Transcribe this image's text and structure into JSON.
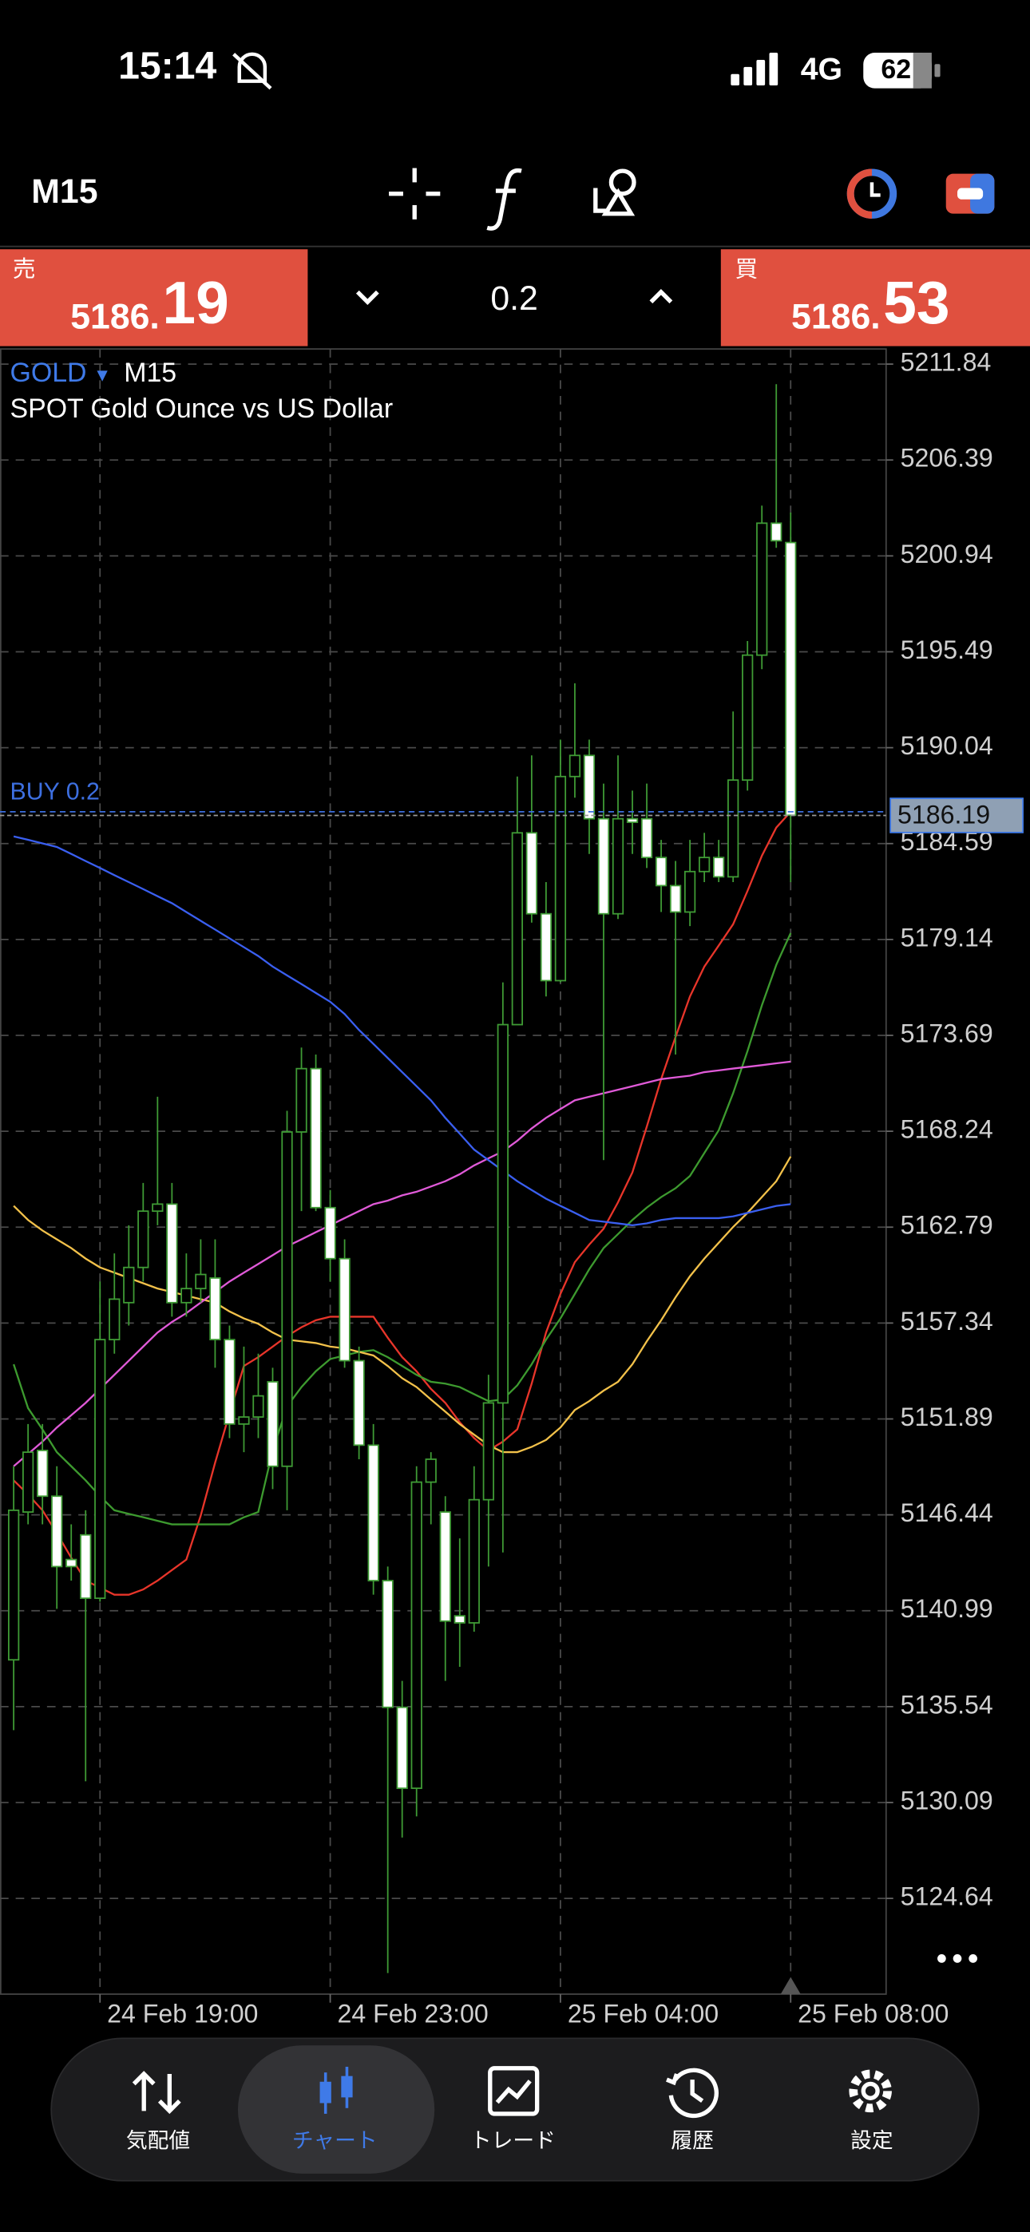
{
  "status_bar": {
    "time": "15:14",
    "network": "4G",
    "battery": "62"
  },
  "toolbar": {
    "timeframe": "M15"
  },
  "trade_panel": {
    "sell_label": "売",
    "sell_price_main": "5186.",
    "sell_price_pips": "19",
    "volume": "0.2",
    "buy_label": "買",
    "buy_price_main": "5186.",
    "buy_price_pips": "53"
  },
  "chart_data": {
    "type": "candlestick",
    "symbol": "GOLD",
    "symbol_marker": "▾",
    "timeframe": "M15",
    "description": "SPOT Gold Ounce vs US Dollar",
    "categories": [
      null,
      null,
      null,
      null,
      null,
      null,
      "24 Feb 19:00",
      null,
      null,
      null,
      null,
      null,
      null,
      null,
      null,
      null,
      null,
      null,
      null,
      null,
      null,
      null,
      "24 Feb 23:00",
      null,
      null,
      null,
      null,
      null,
      null,
      null,
      null,
      null,
      null,
      null,
      null,
      null,
      null,
      null,
      "25 Feb 04:00",
      null,
      null,
      null,
      null,
      null,
      null,
      null,
      null,
      null,
      null,
      null,
      null,
      null,
      null,
      null,
      "25 Feb 08:00"
    ],
    "open": [
      5138.2,
      5146.6,
      5150.1,
      5147.5,
      5143.9,
      5145.3,
      5141.7,
      5156.4,
      5158.5,
      5160.5,
      5163.7,
      5164.1,
      5158.5,
      5159.3,
      5159.9,
      5156.4,
      5151.6,
      5152.0,
      5154.0,
      5149.2,
      5168.2,
      5171.8,
      5163.9,
      5161.0,
      5155.2,
      5150.4,
      5142.7,
      5135.5,
      5130.9,
      5148.3,
      5146.6,
      5140.7,
      5140.3,
      5147.3,
      5152.8,
      5174.3,
      5185.2,
      5180.6,
      5176.8,
      5188.4,
      5189.6,
      5186.0,
      5180.6,
      5186.0,
      5186.0,
      5183.8,
      5182.2,
      5180.7,
      5183.0,
      5183.8,
      5182.7,
      5188.2,
      5195.3,
      5202.8,
      5201.7
    ],
    "high": [
      5149.2,
      5151.6,
      5151.6,
      5149.2,
      5145.9,
      5146.7,
      5159.7,
      5161.3,
      5162.9,
      5165.3,
      5170.2,
      5165.3,
      5161.3,
      5162.1,
      5162.1,
      5157.2,
      5156.0,
      5155.6,
      5154.8,
      5169.4,
      5173.0,
      5172.6,
      5164.9,
      5162.1,
      5156.0,
      5151.6,
      5143.5,
      5137.0,
      5149.2,
      5150.0,
      5147.5,
      5145.1,
      5149.2,
      5154.4,
      5176.7,
      5188.4,
      5189.6,
      5182.4,
      5190.5,
      5193.7,
      5190.5,
      5188.0,
      5189.6,
      5187.6,
      5188.0,
      5184.8,
      5183.6,
      5184.8,
      5185.2,
      5184.8,
      5192.1,
      5196.1,
      5203.8,
      5210.7,
      5203.4
    ],
    "low": [
      5134.2,
      5145.9,
      5145.9,
      5141.1,
      5142.7,
      5131.3,
      5141.5,
      5155.6,
      5157.2,
      5159.7,
      5162.9,
      5157.7,
      5157.7,
      5158.5,
      5154.8,
      5150.8,
      5150.0,
      5150.8,
      5147.9,
      5146.7,
      5163.7,
      5163.7,
      5159.7,
      5154.8,
      5149.6,
      5141.9,
      5120.4,
      5128.1,
      5129.3,
      5145.9,
      5137.0,
      5137.8,
      5139.8,
      5143.5,
      5144.3,
      5174.3,
      5180.1,
      5175.9,
      5176.7,
      5187.2,
      5184.0,
      5166.6,
      5180.3,
      5184.0,
      5183.2,
      5180.7,
      5172.6,
      5179.9,
      5182.4,
      5182.4,
      5182.4,
      5187.6,
      5194.5,
      5201.4,
      5182.4
    ],
    "close": [
      5146.7,
      5150.0,
      5147.5,
      5143.5,
      5143.5,
      5141.7,
      5156.4,
      5158.7,
      5160.5,
      5163.7,
      5164.1,
      5158.5,
      5159.3,
      5160.1,
      5156.4,
      5151.6,
      5152.0,
      5153.2,
      5149.2,
      5168.2,
      5171.8,
      5163.9,
      5161.0,
      5155.2,
      5150.4,
      5142.7,
      5135.5,
      5130.9,
      5148.3,
      5149.6,
      5140.4,
      5140.3,
      5147.3,
      5152.8,
      5174.3,
      5185.2,
      5180.6,
      5176.8,
      5188.4,
      5189.6,
      5186.0,
      5180.6,
      5186.0,
      5185.8,
      5183.8,
      5182.2,
      5180.7,
      5183.0,
      5183.8,
      5182.7,
      5188.2,
      5195.3,
      5202.8,
      5201.8,
      5186.2
    ],
    "up_color": "#000000",
    "down_color": "#ffffff",
    "edge_color": "#3f9b35",
    "lines": [
      {
        "color": "#e8352a",
        "values": [
          5148.4,
          5147.6,
          5146.7,
          5145.4,
          5144.0,
          5142.7,
          5142.3,
          5141.9,
          5141.9,
          5142.2,
          5142.7,
          5143.3,
          5143.9,
          5146.4,
          5149.4,
          5152.2,
          5154.9,
          5155.4,
          5156.0,
          5156.6,
          5157.1,
          5157.5,
          5157.7,
          5157.7,
          5157.7,
          5157.7,
          5156.5,
          5155.4,
          5154.6,
          5153.6,
          5152.8,
          5151.7,
          5150.8,
          5150.1,
          5150.6,
          5151.3,
          5153.9,
          5156.8,
          5159.0,
          5160.8,
          5161.8,
          5162.7,
          5164.2,
          5165.9,
          5168.5,
          5171.2,
          5173.6,
          5175.9,
          5177.6,
          5178.8,
          5180.0,
          5181.9,
          5183.9,
          5185.5,
          5186.4
        ]
      },
      {
        "color": "#3d9a2f",
        "values": [
          5155.0,
          5152.5,
          5151.3,
          5150.0,
          5149.2,
          5148.4,
          5147.5,
          5146.7,
          5146.5,
          5146.3,
          5146.1,
          5145.9,
          5145.9,
          5145.9,
          5145.9,
          5145.9,
          5146.3,
          5146.6,
          5150.1,
          5152.6,
          5153.7,
          5154.6,
          5155.3,
          5155.5,
          5155.7,
          5155.8,
          5155.4,
          5154.9,
          5154.4,
          5154.0,
          5153.9,
          5153.7,
          5153.3,
          5152.9,
          5153.0,
          5153.8,
          5155.0,
          5156.4,
          5157.6,
          5159.0,
          5160.4,
          5161.6,
          5162.4,
          5163.2,
          5163.9,
          5164.5,
          5165.0,
          5165.7,
          5167.0,
          5168.3,
          5170.4,
          5172.8,
          5175.4,
          5177.7,
          5179.5
        ]
      },
      {
        "color": "#f2c14a",
        "values": [
          5164.0,
          5163.2,
          5162.6,
          5162.1,
          5161.6,
          5161.0,
          5160.5,
          5160.2,
          5159.9,
          5159.6,
          5159.3,
          5159.1,
          5158.9,
          5158.7,
          5158.5,
          5158.0,
          5157.6,
          5157.3,
          5156.8,
          5156.4,
          5156.3,
          5156.2,
          5156.0,
          5155.9,
          5155.7,
          5155.5,
          5154.9,
          5154.2,
          5153.7,
          5153.0,
          5152.3,
          5151.6,
          5151.0,
          5150.4,
          5150.0,
          5150.0,
          5150.3,
          5150.7,
          5151.4,
          5152.4,
          5152.9,
          5153.5,
          5154.0,
          5155.0,
          5156.3,
          5157.5,
          5158.8,
          5160.0,
          5161.0,
          5161.9,
          5162.8,
          5163.6,
          5164.5,
          5165.4,
          5166.8
        ]
      },
      {
        "color": "#e05ad8",
        "values": [
          5149.2,
          5149.9,
          5150.6,
          5151.4,
          5152.1,
          5152.8,
          5153.6,
          5154.4,
          5155.2,
          5156.0,
          5156.8,
          5157.4,
          5157.9,
          5158.5,
          5159.1,
          5159.7,
          5160.2,
          5160.7,
          5161.2,
          5161.7,
          5162.1,
          5162.5,
          5162.9,
          5163.3,
          5163.7,
          5164.1,
          5164.3,
          5164.6,
          5164.8,
          5165.1,
          5165.4,
          5165.8,
          5166.3,
          5166.7,
          5167.1,
          5167.7,
          5168.4,
          5169.0,
          5169.5,
          5170.0,
          5170.2,
          5170.4,
          5170.6,
          5170.8,
          5171.0,
          5171.2,
          5171.3,
          5171.4,
          5171.6,
          5171.7,
          5171.8,
          5171.9,
          5172.0,
          5172.1,
          5172.2
        ]
      },
      {
        "color": "#3a5ff0",
        "values": [
          5185.0,
          5184.8,
          5184.6,
          5184.4,
          5184.0,
          5183.6,
          5183.2,
          5182.8,
          5182.4,
          5182.0,
          5181.6,
          5181.2,
          5180.7,
          5180.2,
          5179.7,
          5179.2,
          5178.7,
          5178.2,
          5177.6,
          5177.1,
          5176.6,
          5176.1,
          5175.6,
          5174.9,
          5174.0,
          5173.2,
          5172.4,
          5171.6,
          5170.8,
          5170.0,
          5169.0,
          5168.1,
          5167.2,
          5166.6,
          5166.0,
          5165.4,
          5164.9,
          5164.4,
          5164.0,
          5163.6,
          5163.2,
          5163.1,
          5163.0,
          5162.9,
          5163.0,
          5163.2,
          5163.3,
          5163.3,
          5163.3,
          5163.3,
          5163.4,
          5163.6,
          5163.8,
          5164.0,
          5164.1
        ]
      }
    ],
    "ylim": [
      5119.2,
      5212.7
    ],
    "yticks": [
      5124.64,
      5130.09,
      5135.54,
      5140.99,
      5146.44,
      5151.89,
      5157.34,
      5162.79,
      5168.24,
      5173.69,
      5179.14,
      5184.59,
      5190.04,
      5195.49,
      5200.94,
      5206.39,
      5211.84
    ],
    "grid": true,
    "bid_price": 5186.19,
    "position": {
      "label": "BUY 0.2",
      "price": 5186.4,
      "color": "#3d6fe0"
    }
  },
  "nav": {
    "items": [
      "気配値",
      "チャート",
      "トレード",
      "履歴",
      "設定"
    ]
  }
}
